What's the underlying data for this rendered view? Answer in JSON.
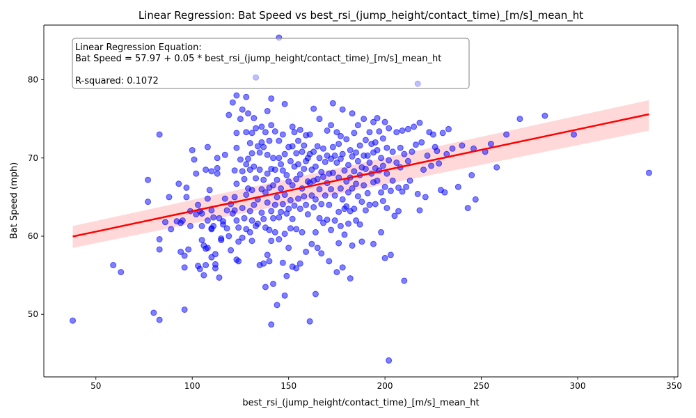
{
  "chart_data": {
    "type": "scatter",
    "title": "Linear Regression: Bat Speed vs best_rsi_(jump_height/contact_time)_[m/s]_mean_ht",
    "xlabel": "best_rsi_(jump_height/contact_time)_[m/s]_mean_ht",
    "ylabel": "Bat Speed (mph)",
    "xlim": [
      23,
      352
    ],
    "ylim": [
      42,
      87
    ],
    "xticks": [
      50,
      100,
      150,
      200,
      250,
      300,
      350
    ],
    "yticks": [
      50,
      60,
      70,
      80
    ],
    "grid": false,
    "annotation": {
      "line1": "Linear Regression Equation:",
      "line2": "Bat Speed = 57.97 + 0.05 * best_rsi_(jump_height/contact_time)_[m/s]_mean_ht",
      "line3": "R-squared: 0.1072"
    },
    "regression": {
      "intercept": 57.97,
      "slope": 0.0523,
      "x_range": [
        38,
        337
      ],
      "ci_lower": [
        58.5,
        73.5
      ],
      "ci_upper": [
        61.3,
        77.4
      ],
      "color": "#ff0000",
      "band_color": "#ff0000"
    },
    "point_color": "#0000ff",
    "points": [
      [
        38,
        49.2
      ],
      [
        59,
        56.3
      ],
      [
        63,
        55.4
      ],
      [
        77,
        67.2
      ],
      [
        77,
        64.4
      ],
      [
        80,
        50.2
      ],
      [
        83,
        73.0
      ],
      [
        83,
        59.6
      ],
      [
        83,
        58.3
      ],
      [
        83,
        49.3
      ],
      [
        86,
        61.8
      ],
      [
        88,
        65.0
      ],
      [
        89,
        60.9
      ],
      [
        92,
        61.9
      ],
      [
        93,
        66.7
      ],
      [
        94,
        61.7
      ],
      [
        94,
        58.0
      ],
      [
        95,
        62.0
      ],
      [
        96,
        56.0
      ],
      [
        96,
        57.5
      ],
      [
        96,
        50.6
      ],
      [
        97,
        66.2
      ],
      [
        97,
        65.0
      ],
      [
        98,
        58.3
      ],
      [
        99,
        63.2
      ],
      [
        99,
        61.3
      ],
      [
        100,
        71.0
      ],
      [
        101,
        69.8
      ],
      [
        102,
        62.8
      ],
      [
        102,
        68.0
      ],
      [
        103,
        64.0
      ],
      [
        103,
        56.2
      ],
      [
        104,
        55.8
      ],
      [
        104,
        63.2
      ],
      [
        105,
        59.5
      ],
      [
        105,
        61.3
      ],
      [
        105,
        62.9
      ],
      [
        106,
        58.8
      ],
      [
        106,
        55.0
      ],
      [
        107,
        68.5
      ],
      [
        107,
        58.4
      ],
      [
        107,
        56.3
      ],
      [
        108,
        64.8
      ],
      [
        108,
        62.0
      ],
      [
        108,
        71.4
      ],
      [
        108,
        58.5
      ],
      [
        109,
        65.9
      ],
      [
        110,
        61.0
      ],
      [
        110,
        68.3
      ],
      [
        110,
        60.9
      ],
      [
        110,
        57.3
      ],
      [
        110,
        63.3
      ],
      [
        111,
        61.3
      ],
      [
        111,
        62.4
      ],
      [
        112,
        57.7
      ],
      [
        112,
        56.4
      ],
      [
        112,
        55.9
      ],
      [
        113,
        68.0
      ],
      [
        113,
        68.7
      ],
      [
        113,
        70.0
      ],
      [
        114,
        54.7
      ],
      [
        114,
        62.3
      ],
      [
        115,
        59.7
      ],
      [
        115,
        59.5
      ],
      [
        116,
        61.9
      ],
      [
        116,
        61.5
      ],
      [
        117,
        70.4
      ],
      [
        117,
        64.8
      ],
      [
        118,
        63.3
      ],
      [
        118,
        61.0
      ],
      [
        119,
        75.5
      ],
      [
        119,
        60.0
      ],
      [
        120,
        58.2
      ],
      [
        120,
        64.1
      ],
      [
        121,
        77.1
      ],
      [
        121,
        62.9
      ],
      [
        122,
        68.4
      ],
      [
        122,
        63.3
      ],
      [
        122,
        65.0
      ],
      [
        123,
        78.0
      ],
      [
        123,
        73.2
      ],
      [
        123,
        71.3
      ],
      [
        123,
        66.7
      ],
      [
        123,
        62.0
      ],
      [
        123,
        57.0
      ],
      [
        124,
        61.1
      ],
      [
        124,
        59.3
      ],
      [
        124,
        56.8
      ],
      [
        125,
        75.0
      ],
      [
        125,
        69.8
      ],
      [
        126,
        76.2
      ],
      [
        126,
        68.3
      ],
      [
        126,
        63.6
      ],
      [
        126,
        59.8
      ],
      [
        127,
        67.3
      ],
      [
        127,
        62.3
      ],
      [
        128,
        77.8
      ],
      [
        128,
        73.3
      ],
      [
        128,
        69.2
      ],
      [
        128,
        65.3
      ],
      [
        128,
        60.9
      ],
      [
        129,
        75.7
      ],
      [
        129,
        69.9
      ],
      [
        129,
        66.1
      ],
      [
        130,
        71.9
      ],
      [
        130,
        68.5
      ],
      [
        130,
        63.2
      ],
      [
        130,
        60.5
      ],
      [
        131,
        73.2
      ],
      [
        131,
        70.6
      ],
      [
        131,
        65.9
      ],
      [
        131,
        62.0
      ],
      [
        131,
        59.4
      ],
      [
        132,
        75.1
      ],
      [
        132,
        68.9
      ],
      [
        132,
        64.0
      ],
      [
        133,
        80.3
      ],
      [
        133,
        73.8
      ],
      [
        133,
        67.4
      ],
      [
        133,
        61.3
      ],
      [
        134,
        71.5
      ],
      [
        134,
        64.7
      ],
      [
        134,
        61.6
      ],
      [
        135,
        56.3
      ],
      [
        135,
        70.7
      ],
      [
        135,
        68.5
      ],
      [
        136,
        74.0
      ],
      [
        136,
        72.0
      ],
      [
        136,
        66.0
      ],
      [
        136,
        63.0
      ],
      [
        137,
        71.4
      ],
      [
        137,
        67.2
      ],
      [
        137,
        62.2
      ],
      [
        137,
        56.5
      ],
      [
        138,
        73.3
      ],
      [
        138,
        65.6
      ],
      [
        138,
        61.1
      ],
      [
        138,
        53.5
      ],
      [
        139,
        76.0
      ],
      [
        139,
        70.4
      ],
      [
        139,
        68.0
      ],
      [
        139,
        64.3
      ],
      [
        139,
        57.6
      ],
      [
        140,
        72.2
      ],
      [
        140,
        66.2
      ],
      [
        140,
        60.8
      ],
      [
        140,
        56.8
      ],
      [
        141,
        77.6
      ],
      [
        141,
        74.2
      ],
      [
        141,
        68.6
      ],
      [
        141,
        63.2
      ],
      [
        141,
        59.4
      ],
      [
        141,
        48.7
      ],
      [
        142,
        70.0
      ],
      [
        142,
        66.5
      ],
      [
        142,
        62.3
      ],
      [
        142,
        53.9
      ],
      [
        143,
        73.4
      ],
      [
        143,
        68.5
      ],
      [
        143,
        64.0
      ],
      [
        143,
        60.5
      ],
      [
        144,
        51.2
      ],
      [
        144,
        67.2
      ],
      [
        144,
        65.0
      ],
      [
        145,
        85.4
      ],
      [
        145,
        72.2
      ],
      [
        145,
        70.0
      ],
      [
        145,
        62.4
      ],
      [
        145,
        59.6
      ],
      [
        146,
        69.2
      ],
      [
        146,
        66.1
      ],
      [
        146,
        63.1
      ],
      [
        147,
        56.6
      ],
      [
        147,
        73.0
      ],
      [
        147,
        68.4
      ],
      [
        147,
        64.1
      ],
      [
        148,
        76.9
      ],
      [
        148,
        70.5
      ],
      [
        148,
        65.3
      ],
      [
        148,
        60.3
      ],
      [
        148,
        52.4
      ],
      [
        149,
        67.8
      ],
      [
        149,
        62.9
      ],
      [
        149,
        54.9
      ],
      [
        150,
        71.4
      ],
      [
        150,
        67.0
      ],
      [
        150,
        63.5
      ],
      [
        150,
        58.5
      ],
      [
        151,
        69.6
      ],
      [
        151,
        64.6
      ],
      [
        151,
        61.0
      ],
      [
        152,
        74.0
      ],
      [
        152,
        71.5
      ],
      [
        152,
        66.5
      ],
      [
        152,
        62.2
      ],
      [
        152,
        56.1
      ],
      [
        153,
        73.3
      ],
      [
        153,
        68.9
      ],
      [
        153,
        63.9
      ],
      [
        154,
        70.6
      ],
      [
        154,
        67.3
      ],
      [
        154,
        60.9
      ],
      [
        154,
        55.9
      ],
      [
        155,
        72.2
      ],
      [
        155,
        69.2
      ],
      [
        155,
        64.8
      ],
      [
        156,
        73.6
      ],
      [
        156,
        67.9
      ],
      [
        156,
        63.5
      ],
      [
        156,
        56.5
      ],
      [
        157,
        70.8
      ],
      [
        157,
        66.1
      ],
      [
        157,
        60.5
      ],
      [
        158,
        71.6
      ],
      [
        158,
        68.6
      ],
      [
        158,
        65.1
      ],
      [
        159,
        72.9
      ],
      [
        159,
        69.6
      ],
      [
        159,
        64.0
      ],
      [
        159,
        58.0
      ],
      [
        160,
        70.0
      ],
      [
        160,
        67.0
      ],
      [
        160,
        62.8
      ],
      [
        161,
        73.0
      ],
      [
        161,
        70.5
      ],
      [
        161,
        66.8
      ],
      [
        161,
        49.1
      ],
      [
        162,
        68.5
      ],
      [
        162,
        65.2
      ],
      [
        162,
        59.0
      ],
      [
        163,
        76.3
      ],
      [
        163,
        70.8
      ],
      [
        163,
        67.1
      ],
      [
        163,
        63.7
      ],
      [
        164,
        52.6
      ],
      [
        164,
        68.9
      ],
      [
        164,
        64.7
      ],
      [
        164,
        60.5
      ],
      [
        165,
        71.5
      ],
      [
        165,
        67.3
      ],
      [
        165,
        58.5
      ],
      [
        166,
        75.0
      ],
      [
        166,
        70.0
      ],
      [
        166,
        66.0
      ],
      [
        166,
        62.3
      ],
      [
        167,
        68.2
      ],
      [
        167,
        64.1
      ],
      [
        167,
        57.8
      ],
      [
        168,
        71.2
      ],
      [
        168,
        67.6
      ],
      [
        168,
        61.7
      ],
      [
        169,
        69.5
      ],
      [
        169,
        65.2
      ],
      [
        170,
        73.5
      ],
      [
        170,
        70.3
      ],
      [
        170,
        66.8
      ],
      [
        170,
        62.1
      ],
      [
        171,
        68.0
      ],
      [
        171,
        64.0
      ],
      [
        171,
        56.8
      ],
      [
        172,
        74.2
      ],
      [
        172,
        69.9
      ],
      [
        172,
        66.0
      ],
      [
        172,
        60.8
      ],
      [
        173,
        77.0
      ],
      [
        173,
        71.4
      ],
      [
        173,
        68.1
      ],
      [
        174,
        70.3
      ],
      [
        174,
        65.2
      ],
      [
        174,
        62.0
      ],
      [
        175,
        73.3
      ],
      [
        175,
        69.4
      ],
      [
        175,
        55.4
      ],
      [
        176,
        71.8
      ],
      [
        176,
        67.5
      ],
      [
        176,
        63.1
      ],
      [
        176,
        59.1
      ],
      [
        177,
        72.8
      ],
      [
        177,
        69.9
      ],
      [
        177,
        66.1
      ],
      [
        177,
        61.3
      ],
      [
        178,
        76.2
      ],
      [
        178,
        70.5
      ],
      [
        178,
        64.7
      ],
      [
        178,
        56.0
      ],
      [
        179,
        68.4
      ],
      [
        179,
        63.5
      ],
      [
        179,
        60.2
      ],
      [
        180,
        72.4
      ],
      [
        180,
        67.0
      ],
      [
        180,
        63.8
      ],
      [
        181,
        69.1
      ],
      [
        181,
        65.6
      ],
      [
        181,
        61.6
      ],
      [
        182,
        71.0
      ],
      [
        182,
        67.5
      ],
      [
        182,
        63.2
      ],
      [
        182,
        54.6
      ],
      [
        183,
        75.7
      ],
      [
        183,
        70.2
      ],
      [
        183,
        66.1
      ],
      [
        183,
        58.8
      ],
      [
        184,
        73.2
      ],
      [
        184,
        68.3
      ],
      [
        184,
        63.5
      ],
      [
        185,
        70.7
      ],
      [
        185,
        66.7
      ],
      [
        185,
        62.0
      ],
      [
        186,
        74.2
      ],
      [
        186,
        69.6
      ],
      [
        186,
        65.1
      ],
      [
        187,
        71.6
      ],
      [
        187,
        67.8
      ],
      [
        187,
        61.5
      ],
      [
        188,
        68.8
      ],
      [
        188,
        64.4
      ],
      [
        188,
        59.3
      ],
      [
        189,
        75.0
      ],
      [
        189,
        70.3
      ],
      [
        189,
        66.5
      ],
      [
        190,
        72.3
      ],
      [
        190,
        68.6
      ],
      [
        190,
        63.3
      ],
      [
        191,
        70.3
      ],
      [
        191,
        65.5
      ],
      [
        192,
        73.3
      ],
      [
        192,
        69.4
      ],
      [
        192,
        64.0
      ],
      [
        193,
        71.8
      ],
      [
        193,
        68.0
      ],
      [
        194,
        74.6
      ],
      [
        194,
        70.7
      ],
      [
        194,
        66.9
      ],
      [
        194,
        59.0
      ],
      [
        195,
        72.0
      ],
      [
        195,
        68.7
      ],
      [
        195,
        64.1
      ],
      [
        196,
        75.1
      ],
      [
        196,
        71.0
      ],
      [
        196,
        67.1
      ],
      [
        197,
        73.4
      ],
      [
        197,
        68.4
      ],
      [
        198,
        70.0
      ],
      [
        198,
        65.6
      ],
      [
        198,
        60.5
      ],
      [
        199,
        72.5
      ],
      [
        199,
        69.0
      ],
      [
        199,
        64.5
      ],
      [
        200,
        74.6
      ],
      [
        200,
        66.3
      ],
      [
        200,
        57.2
      ],
      [
        201,
        71.3
      ],
      [
        201,
        68.0
      ],
      [
        201,
        63.6
      ],
      [
        202,
        44.1
      ],
      [
        202,
        73.8
      ],
      [
        202,
        69.7
      ],
      [
        203,
        57.6
      ],
      [
        203,
        65.8
      ],
      [
        204,
        70.8
      ],
      [
        204,
        67.1
      ],
      [
        205,
        62.6
      ],
      [
        206,
        73.3
      ],
      [
        206,
        69.4
      ],
      [
        207,
        66.2
      ],
      [
        207,
        63.2
      ],
      [
        208,
        71.3
      ],
      [
        208,
        68.8
      ],
      [
        209,
        73.5
      ],
      [
        209,
        65.7
      ],
      [
        210,
        54.3
      ],
      [
        210,
        70.5
      ],
      [
        211,
        66.3
      ],
      [
        212,
        73.7
      ],
      [
        212,
        69.6
      ],
      [
        213,
        67.1
      ],
      [
        214,
        70.8
      ],
      [
        215,
        74.0
      ],
      [
        216,
        71.7
      ],
      [
        217,
        65.4
      ],
      [
        217,
        79.5
      ],
      [
        218,
        74.5
      ],
      [
        218,
        63.3
      ],
      [
        219,
        72.0
      ],
      [
        220,
        68.5
      ],
      [
        221,
        65.0
      ],
      [
        222,
        70.3
      ],
      [
        223,
        73.3
      ],
      [
        224,
        69.0
      ],
      [
        225,
        73.0
      ],
      [
        226,
        71.4
      ],
      [
        227,
        70.9
      ],
      [
        228,
        69.3
      ],
      [
        229,
        65.9
      ],
      [
        230,
        73.2
      ],
      [
        231,
        65.6
      ],
      [
        232,
        70.5
      ],
      [
        233,
        73.7
      ],
      [
        235,
        71.2
      ],
      [
        238,
        66.3
      ],
      [
        240,
        71.6
      ],
      [
        243,
        63.6
      ],
      [
        245,
        67.8
      ],
      [
        246,
        71.2
      ],
      [
        247,
        64.7
      ],
      [
        252,
        70.8
      ],
      [
        255,
        71.8
      ],
      [
        258,
        68.8
      ],
      [
        263,
        73.0
      ],
      [
        270,
        75.0
      ],
      [
        283,
        75.4
      ],
      [
        298,
        73.0
      ],
      [
        337,
        68.1
      ]
    ]
  }
}
